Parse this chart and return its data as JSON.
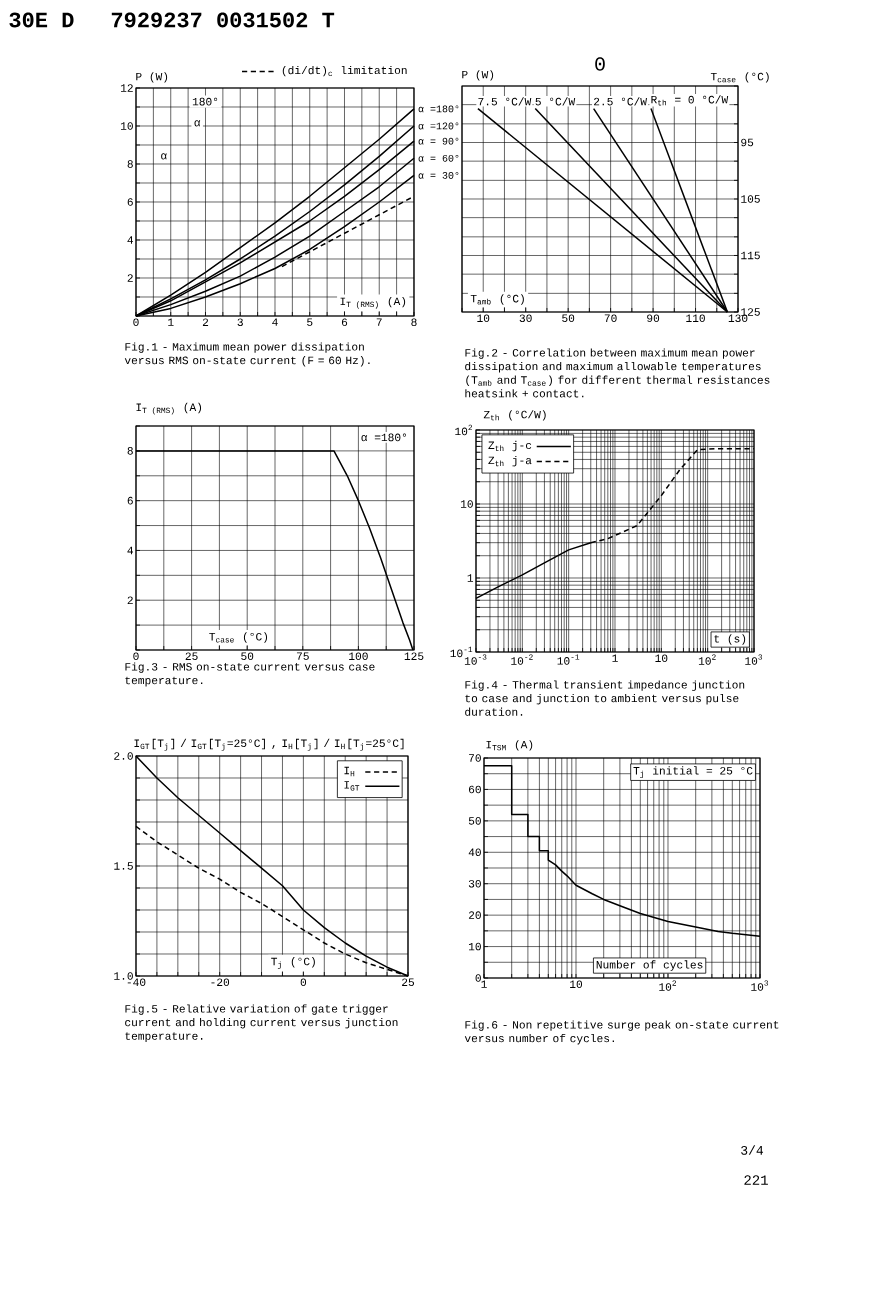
{
  "chart_data": [
    {
      "type": "other",
      "annotations": [
        "30E D",
        "7929237 0031502 T",
        "0"
      ]
    },
    {
      "type": "line",
      "title": "Fig.1 - Maximum mean power dissipation versus RMS on-state current (F = 60 Hz).",
      "xlabel": "I$_{T (RMS)}$ (A)",
      "ylabel": "P (W)",
      "xlim": [
        0,
        8
      ],
      "ylim": [
        0,
        12
      ],
      "xticks": [
        0,
        {
          "value": 0.5,
          "label": null
        },
        1,
        {
          "value": 1.5,
          "label": null
        },
        2,
        {
          "value": 2.5,
          "label": null
        },
        3,
        {
          "value": 3.5,
          "label": null
        },
        4,
        {
          "value": 4.5,
          "label": null
        },
        5,
        {
          "value": 5.5,
          "label": null
        },
        6,
        {
          "value": 6.5,
          "label": null
        },
        7,
        {
          "value": 7.5,
          "label": null
        },
        8
      ],
      "yticks": [
        {
          "value": 0,
          "label": null
        },
        {
          "value": 1,
          "label": null
        },
        2,
        {
          "value": 3,
          "label": null
        },
        4,
        {
          "value": 5,
          "label": null
        },
        6,
        {
          "value": 7,
          "label": null
        },
        8,
        {
          "value": 9,
          "label": null
        },
        10,
        {
          "value": 11,
          "label": null
        },
        12
      ],
      "grid": true,
      "legend": "top right",
      "annotations": [
        "180°",
        "α",
        "α"
      ],
      "series": [
        {
          "name": "α =180°",
          "color": "#000000",
          "x": [
            0,
            1,
            2,
            3,
            4,
            5,
            6,
            7,
            8
          ],
          "values": [
            0,
            1.1,
            2.3,
            3.6,
            4.9,
            6.3,
            7.8,
            9.3,
            10.9
          ]
        },
        {
          "name": "α =120°",
          "color": "#000000",
          "x": [
            0,
            1,
            2,
            3,
            4,
            5,
            6,
            7,
            8
          ],
          "values": [
            0,
            0.9,
            1.9,
            3.0,
            4.2,
            5.5,
            6.9,
            8.4,
            10.0
          ]
        },
        {
          "name": "α = 90°",
          "color": "#000000",
          "x": [
            0,
            1,
            2,
            3,
            4,
            5,
            6,
            7,
            8
          ],
          "values": [
            0,
            0.8,
            1.8,
            2.8,
            3.9,
            5.0,
            6.3,
            7.7,
            9.2
          ]
        },
        {
          "name": "α = 60°",
          "color": "#000000",
          "x": [
            0,
            1,
            2,
            3,
            4,
            5,
            6,
            7,
            8
          ],
          "values": [
            0,
            0.6,
            1.3,
            2.1,
            3.1,
            4.2,
            5.5,
            6.8,
            8.3
          ]
        },
        {
          "name": "α = 30°",
          "color": "#000000",
          "x": [
            0,
            1,
            2,
            3,
            4,
            5,
            6,
            7,
            8
          ],
          "values": [
            0,
            0.4,
            1.0,
            1.7,
            2.5,
            3.5,
            4.7,
            6.0,
            7.4
          ]
        },
        {
          "name": "(di/dt)$_{c}$ limitation",
          "color": "#000000",
          "line_style": "dashed",
          "x": [
            4.2,
            8
          ],
          "values": [
            2.6,
            6.3
          ]
        }
      ]
    },
    {
      "type": "line",
      "title": "Fig.2 - Correlation between maximum mean power dissipation and maximum allowable temperatures (T$_{amb}$ and T$_{case}$) for different thermal resistances heatsink + contact.",
      "xlabel": "T$_{amb}$ (°C)",
      "ylabel": "P (W)",
      "y2label": "T$_{case}$ (°C)",
      "xlim": [
        0,
        130
      ],
      "y2lim": [
        125,
        85
      ],
      "xticks": [
        {
          "value": 0,
          "label": null
        },
        10,
        {
          "value": 20,
          "label": null
        },
        30,
        {
          "value": 40,
          "label": null
        },
        50,
        {
          "value": 60,
          "label": null
        },
        70,
        {
          "value": 80,
          "label": null
        },
        90,
        {
          "value": 100,
          "label": null
        },
        110,
        {
          "value": 120,
          "label": null
        },
        130
      ],
      "y2ticks": [
        {
          "value": 85,
          "label": null
        },
        {
          "value": 88.3,
          "label": null
        },
        {
          "value": 91.7,
          "label": null
        },
        95,
        {
          "value": 98.3,
          "label": null
        },
        {
          "value": 101.7,
          "label": null
        },
        105,
        {
          "value": 108.3,
          "label": null
        },
        {
          "value": 111.7,
          "label": null
        },
        115,
        {
          "value": 118.3,
          "label": null
        },
        {
          "value": 121.7,
          "label": null
        },
        125
      ],
      "grid": true,
      "series": [
        {
          "name": "R$_{th}$ = 0 °C/W",
          "color": "#000000",
          "axis": "y2",
          "x": [
            89,
            125
          ],
          "values": [
            89,
            125
          ]
        },
        {
          "name": "2.5 °C/W",
          "color": "#000000",
          "axis": "y2",
          "x": [
            62,
            125
          ],
          "values": [
            89,
            125
          ]
        },
        {
          "name": "5 °C/W",
          "color": "#000000",
          "axis": "y2",
          "x": [
            34.5,
            125
          ],
          "values": [
            89,
            125
          ]
        },
        {
          "name": "7.5 °C/W",
          "color": "#000000",
          "axis": "y2",
          "x": [
            7.5,
            125
          ],
          "values": [
            89,
            125
          ]
        }
      ]
    },
    {
      "type": "line",
      "title": "Fig.3 - RMS on-state current versus case temperature.",
      "xlabel": "T$_{case}$ (°C)",
      "ylabel": "I$_{T (RMS)}$ (A)",
      "xlim": [
        0,
        125
      ],
      "ylim": [
        0,
        9
      ],
      "xticks": [
        0,
        {
          "value": 12.5,
          "label": null
        },
        25,
        {
          "value": 37.5,
          "label": null
        },
        50,
        {
          "value": 62.5,
          "label": null
        },
        75,
        {
          "value": 87.5,
          "label": null
        },
        100,
        {
          "value": 112.5,
          "label": null
        },
        125
      ],
      "yticks": [
        {
          "value": 0,
          "label": null
        },
        {
          "value": 1,
          "label": null
        },
        2,
        {
          "value": 3,
          "label": null
        },
        4,
        {
          "value": 5,
          "label": null
        },
        6,
        {
          "value": 7,
          "label": null
        },
        8,
        {
          "value": 9,
          "label": null
        }
      ],
      "grid": true,
      "series": [
        {
          "name": "α =180°",
          "color": "#000000",
          "x": [
            0,
            89,
            95,
            100,
            105,
            110,
            115,
            120,
            123,
            124.5
          ],
          "values": [
            8,
            8,
            7,
            6,
            4.9,
            3.7,
            2.4,
            1.1,
            0.4,
            0
          ]
        }
      ]
    },
    {
      "type": "line",
      "title": "Fig.4 - Thermal transient impedance junction to case and junction to ambient versus pulse duration.",
      "xlabel": "t (s)",
      "ylabel": "Z$_{th}$ (°C/W)",
      "log": "xy",
      "xlim": [
        0.001,
        1000
      ],
      "ylim": [
        0.1,
        100
      ],
      "xticks": [
        {
          "value": 0.001,
          "label": "10$^{-3}$"
        },
        {
          "value": 0.002,
          "label": null
        },
        {
          "value": 0.003,
          "label": null
        },
        {
          "value": 0.004,
          "label": null
        },
        {
          "value": 0.005,
          "label": null
        },
        {
          "value": 0.006,
          "label": null
        },
        {
          "value": 0.007,
          "label": null
        },
        {
          "value": 0.008,
          "label": null
        },
        {
          "value": 0.009,
          "label": null
        },
        {
          "value": 0.01,
          "label": "10$^{-2}$"
        },
        {
          "value": 0.02,
          "label": null
        },
        {
          "value": 0.03,
          "label": null
        },
        {
          "value": 0.04,
          "label": null
        },
        {
          "value": 0.05,
          "label": null
        },
        {
          "value": 0.06,
          "label": null
        },
        {
          "value": 0.07,
          "label": null
        },
        {
          "value": 0.08,
          "label": null
        },
        {
          "value": 0.09,
          "label": null
        },
        {
          "value": 0.1,
          "label": "10$^{-1}$"
        },
        {
          "value": 0.2,
          "label": null
        },
        {
          "value": 0.3,
          "label": null
        },
        {
          "value": 0.4,
          "label": null
        },
        {
          "value": 0.5,
          "label": null
        },
        {
          "value": 0.6,
          "label": null
        },
        {
          "value": 0.7,
          "label": null
        },
        {
          "value": 0.8,
          "label": null
        },
        {
          "value": 0.9,
          "label": null
        },
        1,
        {
          "value": 2,
          "label": null
        },
        {
          "value": 3,
          "label": null
        },
        {
          "value": 4,
          "label": null
        },
        {
          "value": 5,
          "label": null
        },
        {
          "value": 6,
          "label": null
        },
        {
          "value": 7,
          "label": null
        },
        {
          "value": 8,
          "label": null
        },
        {
          "value": 9,
          "label": null
        },
        10,
        {
          "value": 20,
          "label": null
        },
        {
          "value": 30,
          "label": null
        },
        {
          "value": 40,
          "label": null
        },
        {
          "value": 50,
          "label": null
        },
        {
          "value": 60,
          "label": null
        },
        {
          "value": 70,
          "label": null
        },
        {
          "value": 80,
          "label": null
        },
        {
          "value": 90,
          "label": null
        },
        {
          "value": 100,
          "label": "10$^{2}$"
        },
        {
          "value": 200,
          "label": null
        },
        {
          "value": 300,
          "label": null
        },
        {
          "value": 400,
          "label": null
        },
        {
          "value": 500,
          "label": null
        },
        {
          "value": 600,
          "label": null
        },
        {
          "value": 700,
          "label": null
        },
        {
          "value": 800,
          "label": null
        },
        {
          "value": 900,
          "label": null
        },
        {
          "value": 1000,
          "label": "10$^{3}$"
        }
      ],
      "yticks": [
        {
          "value": 0.1,
          "label": "10$^{-1}$"
        },
        {
          "value": 0.2,
          "label": null
        },
        {
          "value": 0.3,
          "label": null
        },
        {
          "value": 0.4,
          "label": null
        },
        {
          "value": 0.5,
          "label": null
        },
        {
          "value": 0.6,
          "label": null
        },
        {
          "value": 0.7,
          "label": null
        },
        {
          "value": 0.8,
          "label": null
        },
        {
          "value": 0.9,
          "label": null
        },
        1,
        {
          "value": 2,
          "label": null
        },
        {
          "value": 3,
          "label": null
        },
        {
          "value": 4,
          "label": null
        },
        {
          "value": 5,
          "label": null
        },
        {
          "value": 6,
          "label": null
        },
        {
          "value": 7,
          "label": null
        },
        {
          "value": 8,
          "label": null
        },
        {
          "value": 9,
          "label": null
        },
        10,
        {
          "value": 20,
          "label": null
        },
        {
          "value": 30,
          "label": null
        },
        {
          "value": 40,
          "label": null
        },
        {
          "value": 50,
          "label": null
        },
        {
          "value": 60,
          "label": null
        },
        {
          "value": 70,
          "label": null
        },
        {
          "value": 80,
          "label": null
        },
        {
          "value": 90,
          "label": null
        },
        {
          "value": 100,
          "label": "10$^{2}$"
        }
      ],
      "grid": true,
      "legend": "top left",
      "series": [
        {
          "name": "Z$_{th}$ j-c",
          "color": "#000000",
          "x": [
            0.001,
            0.003,
            0.01,
            0.03,
            0.1,
            0.3
          ],
          "values": [
            0.53,
            0.76,
            1.1,
            1.6,
            2.4,
            3.0
          ]
        },
        {
          "name": "Z$_{th}$ j-a",
          "color": "#000000",
          "line_style": "dashed",
          "x": [
            0.3,
            0.7,
            3,
            10,
            25,
            60,
            140,
            1000
          ],
          "values": [
            3.0,
            3.4,
            5.1,
            13,
            29,
            54,
            56,
            56
          ]
        }
      ]
    },
    {
      "type": "line",
      "title": "Fig.5 - Relative variation of gate trigger current and holding current versus junction temperature.",
      "xlabel": "T$_{j}$ (°C)",
      "ylabel": "I$_{GT}$[T$_{j}$] / I$_{GT}$[T$_{j}$=25°C] , I$_{H}$[T$_{j}$] / I$_{H}$[T$_{j}$=25°C]",
      "xlim": [
        -40,
        25
      ],
      "ylim": [
        1,
        2
      ],
      "xticks": [
        -40,
        {
          "value": -35,
          "label": null
        },
        {
          "value": -30,
          "label": null
        },
        {
          "value": -25,
          "label": null
        },
        -20,
        {
          "value": -15,
          "label": null
        },
        {
          "value": -10,
          "label": null
        },
        {
          "value": -5,
          "label": null
        },
        0,
        {
          "value": 5,
          "label": null
        },
        {
          "value": 10,
          "label": null
        },
        {
          "value": 15,
          "label": null
        },
        {
          "value": 20,
          "label": null
        },
        25
      ],
      "yticks": [
        {
          "value": 1,
          "label": "1.0"
        },
        {
          "value": 1.1,
          "label": null
        },
        {
          "value": 1.2,
          "label": null
        },
        {
          "value": 1.3,
          "label": null
        },
        {
          "value": 1.4,
          "label": null
        },
        {
          "value": 1.5,
          "label": "1.5"
        },
        {
          "value": 1.6,
          "label": null
        },
        {
          "value": 1.7,
          "label": null
        },
        {
          "value": 1.8,
          "label": null
        },
        {
          "value": 1.9,
          "label": null
        },
        {
          "value": 2,
          "label": "2.0"
        }
      ],
      "grid": true,
      "legend": "top right",
      "series": [
        {
          "name": "I$_{H}$",
          "color": "#000000",
          "line_style": "dashed",
          "x": [
            -40,
            -35,
            -30,
            -25,
            -20,
            -15,
            -10,
            -5,
            0,
            5,
            10,
            15,
            20,
            25
          ],
          "values": [
            1.68,
            1.61,
            1.55,
            1.49,
            1.44,
            1.38,
            1.33,
            1.27,
            1.21,
            1.15,
            1.1,
            1.06,
            1.03,
            1.0
          ]
        },
        {
          "name": "I$_{GT}$",
          "color": "#000000",
          "x": [
            -40,
            -35,
            -30,
            -25,
            -20,
            -15,
            -10,
            -5,
            0,
            5,
            10,
            15,
            20,
            25
          ],
          "values": [
            2.0,
            1.9,
            1.81,
            1.73,
            1.65,
            1.57,
            1.49,
            1.41,
            1.3,
            1.22,
            1.15,
            1.09,
            1.04,
            1.0
          ]
        }
      ]
    },
    {
      "type": "line",
      "title": "Fig.6 - Non repetitive surge peak on-state current versus number of cycles.",
      "xlabel": "Number of cycles",
      "ylabel": "I$_{TSM}$ (A)",
      "log": "x",
      "xlim": [
        1,
        1000
      ],
      "ylim": [
        0,
        70
      ],
      "xticks": [
        1,
        {
          "value": 2,
          "label": null
        },
        {
          "value": 3,
          "label": null
        },
        {
          "value": 4,
          "label": null
        },
        {
          "value": 5,
          "label": null
        },
        {
          "value": 6,
          "label": null
        },
        {
          "value": 7,
          "label": null
        },
        {
          "value": 8,
          "label": null
        },
        {
          "value": 9,
          "label": null
        },
        10,
        {
          "value": 20,
          "label": null
        },
        {
          "value": 30,
          "label": null
        },
        {
          "value": 40,
          "label": null
        },
        {
          "value": 50,
          "label": null
        },
        {
          "value": 60,
          "label": null
        },
        {
          "value": 70,
          "label": null
        },
        {
          "value": 80,
          "label": null
        },
        {
          "value": 90,
          "label": null
        },
        {
          "value": 100,
          "label": "10$^{2}$"
        },
        {
          "value": 200,
          "label": null
        },
        {
          "value": 300,
          "label": null
        },
        {
          "value": 400,
          "label": null
        },
        {
          "value": 500,
          "label": null
        },
        {
          "value": 600,
          "label": null
        },
        {
          "value": 700,
          "label": null
        },
        {
          "value": 800,
          "label": null
        },
        {
          "value": 900,
          "label": null
        },
        {
          "value": 1000,
          "label": "10$^{3}$"
        }
      ],
      "yticks": [
        0,
        {
          "value": 5,
          "label": null
        },
        10,
        {
          "value": 15,
          "label": null
        },
        20,
        {
          "value": 25,
          "label": null
        },
        30,
        {
          "value": 35,
          "label": null
        },
        40,
        {
          "value": 45,
          "label": null
        },
        50,
        {
          "value": 55,
          "label": null
        },
        60,
        {
          "value": 65,
          "label": null
        },
        70
      ],
      "grid": true,
      "annotations": [
        "T$_{j}$ initial = 25 °C"
      ],
      "series": [
        {
          "color": "#000000",
          "x": [
            1,
            2,
            2,
            3,
            3,
            4,
            4,
            5,
            5,
            6,
            7,
            8,
            10,
            15,
            20,
            30,
            50,
            100,
            200,
            350,
            500,
            1000
          ],
          "values": [
            67.5,
            67.5,
            52,
            52,
            45,
            45,
            40.5,
            40.5,
            37.5,
            36,
            34,
            32.5,
            29.5,
            26.8,
            25,
            23,
            20.5,
            18,
            16.2,
            14.8,
            14.2,
            13.3
          ]
        }
      ]
    },
    {
      "type": "other",
      "annotations": [
        "3/4",
        "221"
      ]
    }
  ]
}
